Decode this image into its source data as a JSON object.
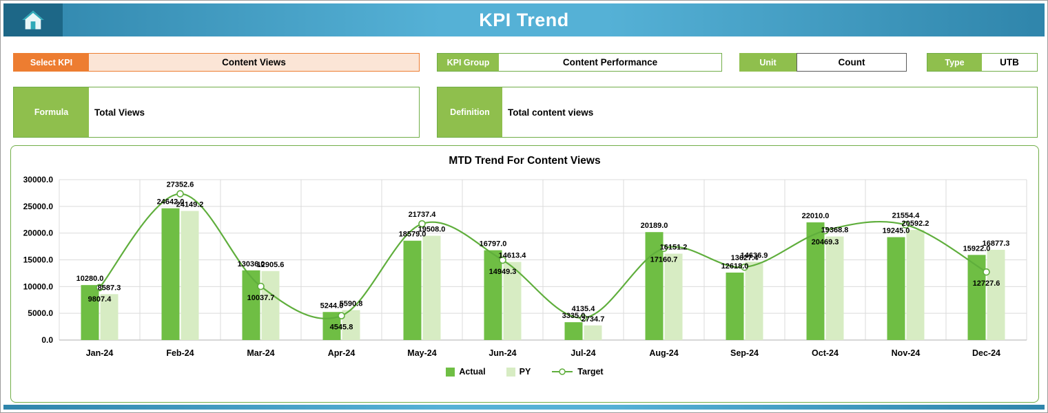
{
  "header": {
    "title": "KPI Trend"
  },
  "controls": {
    "select_kpi": {
      "label": "Select KPI",
      "value": "Content Views"
    },
    "kpi_group": {
      "label": "KPI Group",
      "value": "Content Performance"
    },
    "unit": {
      "label": "Unit",
      "value": "Count"
    },
    "type": {
      "label": "Type",
      "value": "UTB"
    },
    "formula": {
      "label": "Formula",
      "value": "Total Views"
    },
    "definition": {
      "label": "Definition",
      "value": "Total content views"
    }
  },
  "chart_data": {
    "type": "bar",
    "title": "MTD Trend For Content Views",
    "categories": [
      "Jan-24",
      "Feb-24",
      "Mar-24",
      "Apr-24",
      "May-24",
      "Jun-24",
      "Jul-24",
      "Aug-24",
      "Sep-24",
      "Oct-24",
      "Nov-24",
      "Dec-24"
    ],
    "series": [
      {
        "name": "Actual",
        "render": "bar",
        "color": "#6FBE44",
        "values": [
          10280.0,
          24642.0,
          13036.0,
          5244.0,
          18579.0,
          16797.0,
          3335.0,
          20189.0,
          12618.0,
          22010.0,
          19245.0,
          15922.0
        ]
      },
      {
        "name": "PY",
        "render": "bar",
        "color": "#D7ECC3",
        "values": [
          8587.3,
          24149.2,
          12905.6,
          5590.8,
          19508.0,
          14613.4,
          2734.7,
          16151.2,
          14636.9,
          19368.8,
          20592.2,
          16877.3
        ]
      },
      {
        "name": "Target",
        "render": "line",
        "color": "#5FAE3C",
        "values": [
          9807.4,
          27352.6,
          10037.7,
          4545.8,
          21737.4,
          14949.3,
          4135.4,
          17160.7,
          13627.4,
          20469.3,
          21554.4,
          12727.6
        ]
      }
    ],
    "xlabel": "",
    "ylabel": "",
    "ylim": [
      0,
      30000
    ],
    "ytick_step": 5000,
    "grid": true,
    "legend_position": "bottom"
  }
}
